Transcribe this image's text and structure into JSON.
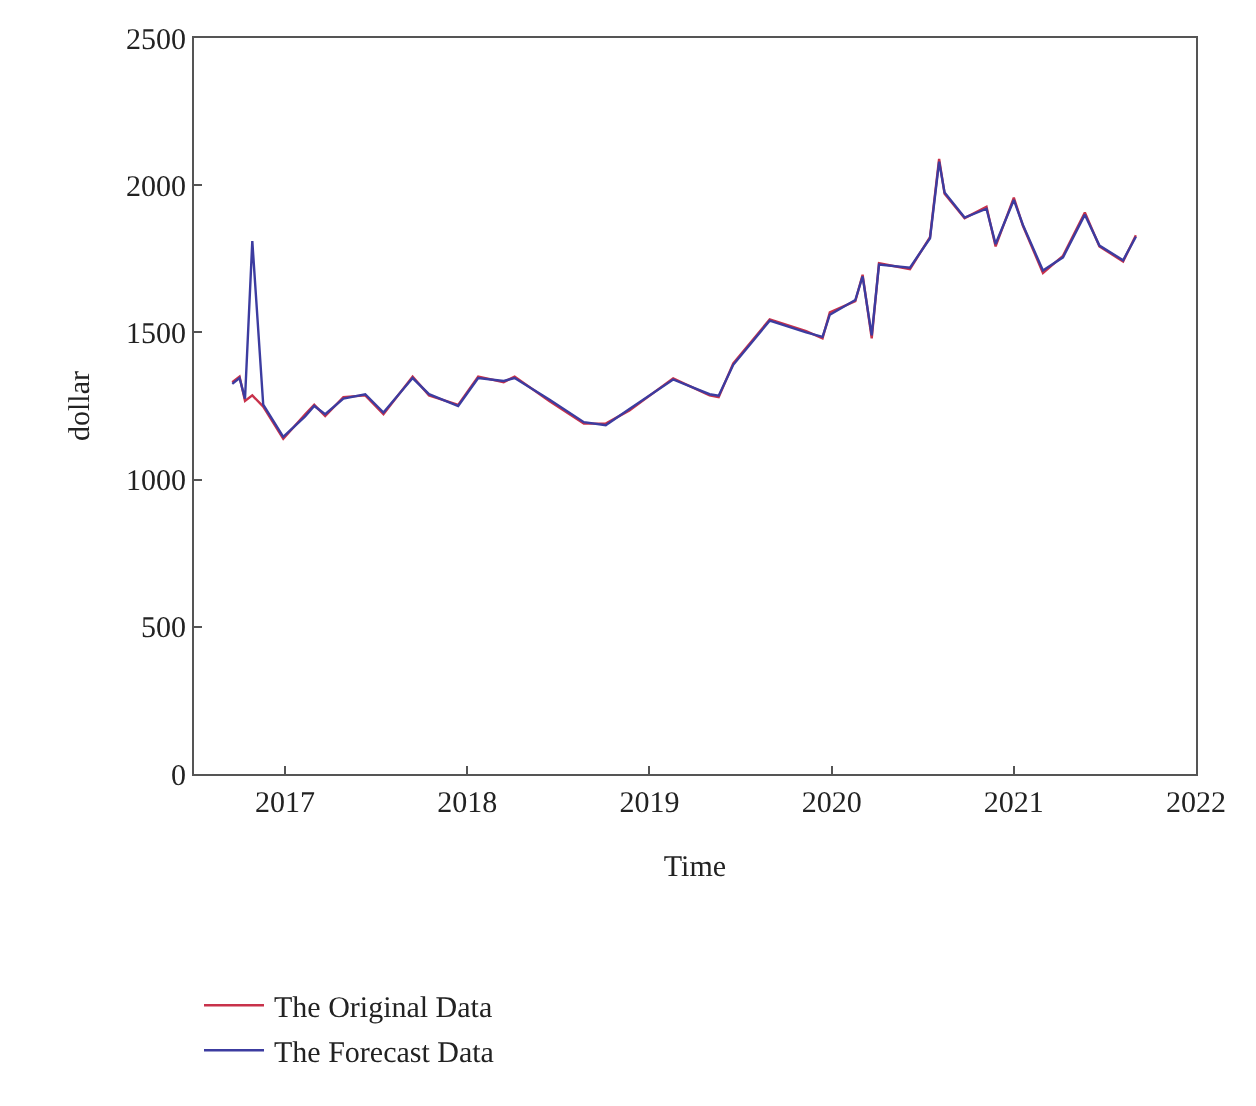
{
  "chart_data": {
    "type": "line",
    "xlabel": "Time",
    "ylabel": "dollar",
    "x": [
      2016.71,
      2016.75,
      2016.78,
      2016.82,
      2016.88,
      2016.99,
      2017.11,
      2017.16,
      2017.22,
      2017.32,
      2017.44,
      2017.54,
      2017.7,
      2017.79,
      2017.95,
      2018.06,
      2018.2,
      2018.26,
      2018.45,
      2018.64,
      2018.76,
      2018.89,
      2019.13,
      2019.33,
      2019.38,
      2019.46,
      2019.66,
      2019.86,
      2019.95,
      2019.99,
      2020.13,
      2020.17,
      2020.22,
      2020.26,
      2020.43,
      2020.54,
      2020.59,
      2020.62,
      2020.73,
      2020.85,
      2020.9,
      2021.0,
      2021.05,
      2021.16,
      2021.27,
      2021.39,
      2021.47,
      2021.6,
      2021.67
    ],
    "series": [
      {
        "name": "The Original Data",
        "color": "#c8324b",
        "values": [
          1331,
          1350,
          1267,
          1286,
          1248,
          1139,
          1222,
          1254,
          1216,
          1280,
          1286,
          1222,
          1350,
          1286,
          1254,
          1350,
          1331,
          1350,
          1267,
          1190,
          1190,
          1235,
          1344,
          1286,
          1280,
          1395,
          1544,
          1504,
          1480,
          1568,
          1606,
          1696,
          1480,
          1735,
          1715,
          1824,
          2089,
          1971,
          1888,
          1927,
          1792,
          1958,
          1862,
          1702,
          1760,
          1907,
          1792,
          1741,
          1830
        ]
      },
      {
        "name": "The Forecast Data",
        "color": "#3c3ca0",
        "values": [
          1325,
          1345,
          1275,
          1810,
          1255,
          1145,
          1215,
          1250,
          1222,
          1275,
          1290,
          1228,
          1345,
          1290,
          1250,
          1345,
          1335,
          1345,
          1272,
          1195,
          1185,
          1240,
          1340,
          1290,
          1285,
          1390,
          1540,
          1500,
          1485,
          1560,
          1610,
          1690,
          1490,
          1730,
          1720,
          1820,
          2080,
          1975,
          1890,
          1920,
          1800,
          1950,
          1865,
          1710,
          1755,
          1900,
          1795,
          1745,
          1825
        ]
      }
    ],
    "xlim": [
      2016.5,
      2022
    ],
    "xticks": [
      2017,
      2018,
      2019,
      2020,
      2021,
      2022
    ],
    "ylim": [
      0,
      2500
    ],
    "yticks": [
      0,
      500,
      1000,
      1500,
      2000,
      2500
    ],
    "legend": "bottom left",
    "marker": "none",
    "line_style": "solid"
  }
}
